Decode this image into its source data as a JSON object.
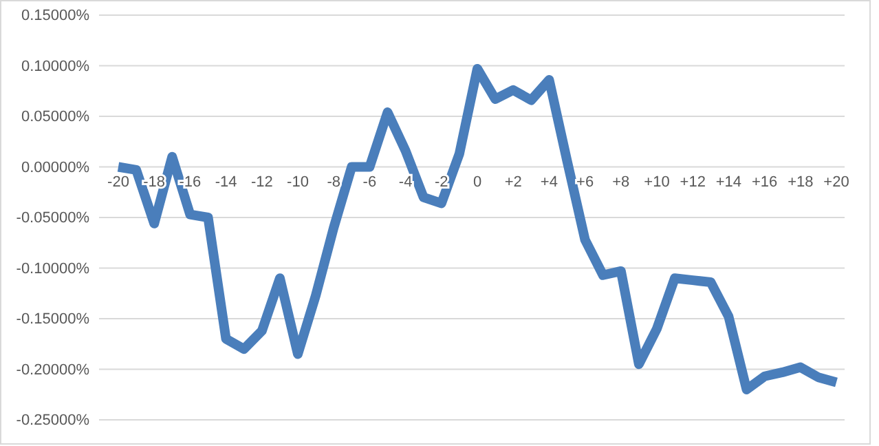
{
  "chart_data": {
    "type": "line",
    "categories": [
      "-20",
      null,
      "-18",
      null,
      "-16",
      null,
      "-14",
      null,
      "-12",
      null,
      "-10",
      null,
      "-8",
      null,
      "-6",
      null,
      "-4",
      null,
      "-2",
      null,
      "0",
      null,
      "+2",
      null,
      "+4",
      null,
      "+6",
      null,
      "+8",
      null,
      "+10",
      null,
      "+12",
      null,
      "+14",
      null,
      "+16",
      null,
      "+18",
      null,
      "+20"
    ],
    "series": [
      {
        "color": "#4a7ebb",
        "values": [
          0.0,
          -0.003,
          -0.056,
          0.01,
          -0.047,
          -0.05,
          -0.17,
          -0.18,
          -0.162,
          -0.11,
          -0.185,
          -0.127,
          -0.06,
          0.0,
          0.0,
          0.054,
          0.016,
          -0.03,
          -0.036,
          0.013,
          0.097,
          0.067,
          0.076,
          0.066,
          0.086,
          0.006,
          -0.072,
          -0.107,
          -0.103,
          -0.195,
          -0.16,
          -0.11,
          -0.112,
          -0.114,
          -0.148,
          -0.22,
          -0.207,
          -0.203,
          -0.198,
          -0.208,
          -0.213
        ]
      }
    ],
    "ylim": [
      -0.25,
      0.15
    ],
    "yticks": [
      {
        "value": -0.25,
        "label": "-0.25000%"
      },
      {
        "value": -0.2,
        "label": "-0.20000%"
      },
      {
        "value": -0.15,
        "label": "-0.15000%"
      },
      {
        "value": -0.1,
        "label": "-0.10000%"
      },
      {
        "value": -0.05,
        "label": "-0.05000%"
      },
      {
        "value": 0,
        "label": "0.00000%"
      },
      {
        "value": 0.05,
        "label": "0.05000%"
      },
      {
        "value": 0.1,
        "label": "0.10000%"
      },
      {
        "value": 0.15,
        "label": "0.15000%"
      }
    ],
    "grid": "y",
    "marker": "none",
    "line_style": "solid"
  }
}
